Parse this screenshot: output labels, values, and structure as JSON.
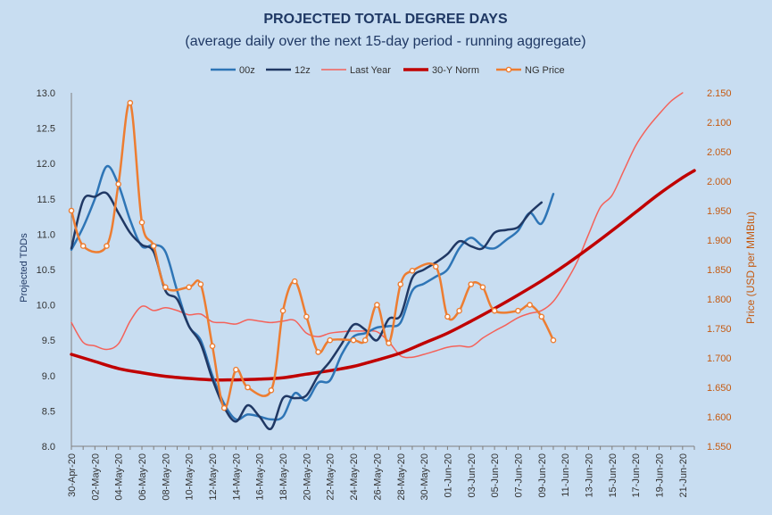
{
  "chart_data": {
    "type": "line",
    "title": "PROJECTED TOTAL DEGREE DAYS",
    "subtitle": "(average daily over the next 15-day period - running aggregate)",
    "ylabel": "Projected TDDs",
    "y2label": "Price (USD per MMBtu)",
    "ylim": [
      8.0,
      13.0
    ],
    "y2lim": [
      1.55,
      2.15
    ],
    "yticks": [
      "13.0",
      "12.5",
      "12.0",
      "11.5",
      "11.0",
      "10.5",
      "10.0",
      "9.5",
      "9.0",
      "8.5",
      "8.0"
    ],
    "y2ticks": [
      "2.150",
      "2.100",
      "2.050",
      "2.000",
      "1.950",
      "1.900",
      "1.850",
      "1.800",
      "1.750",
      "1.700",
      "1.650",
      "1.600",
      "1.550"
    ],
    "x_start": "2020-04-30",
    "x_end": "2020-06-22",
    "xticks": [
      "30-Apr-20",
      "02-May-20",
      "04-May-20",
      "06-May-20",
      "08-May-20",
      "10-May-20",
      "12-May-20",
      "14-May-20",
      "16-May-20",
      "18-May-20",
      "20-May-20",
      "22-May-20",
      "24-May-20",
      "26-May-20",
      "28-May-20",
      "30-May-20",
      "01-Jun-20",
      "03-Jun-20",
      "05-Jun-20",
      "07-Jun-20",
      "09-Jun-20",
      "11-Jun-20",
      "13-Jun-20",
      "15-Jun-20",
      "17-Jun-20",
      "19-Jun-20",
      "21-Jun-20"
    ],
    "grid": false,
    "legend": "top",
    "series": [
      {
        "name": "00z",
        "color": "#2e75b6",
        "axis": "left",
        "style": "line",
        "points": [
          [
            "30-Apr-20",
            10.78
          ],
          [
            "01-May-20",
            11.1
          ],
          [
            "02-May-20",
            11.5
          ],
          [
            "03-May-20",
            11.96
          ],
          [
            "04-May-20",
            11.7
          ],
          [
            "05-May-20",
            11.2
          ],
          [
            "06-May-20",
            10.83
          ],
          [
            "07-May-20",
            10.85
          ],
          [
            "08-May-20",
            10.75
          ],
          [
            "09-May-20",
            10.2
          ],
          [
            "10-May-20",
            9.7
          ],
          [
            "11-May-20",
            9.5
          ],
          [
            "12-May-20",
            9.0
          ],
          [
            "13-May-20",
            8.6
          ],
          [
            "14-May-20",
            8.38
          ],
          [
            "15-May-20",
            8.45
          ],
          [
            "16-May-20",
            8.42
          ],
          [
            "17-May-20",
            8.38
          ],
          [
            "18-May-20",
            8.42
          ],
          [
            "19-May-20",
            8.75
          ],
          [
            "20-May-20",
            8.65
          ],
          [
            "21-May-20",
            8.9
          ],
          [
            "22-May-20",
            8.93
          ],
          [
            "23-May-20",
            9.3
          ],
          [
            "24-May-20",
            9.55
          ],
          [
            "25-May-20",
            9.6
          ],
          [
            "26-May-20",
            9.68
          ],
          [
            "27-May-20",
            9.7
          ],
          [
            "28-May-20",
            9.75
          ],
          [
            "29-May-20",
            10.2
          ],
          [
            "30-May-20",
            10.3
          ],
          [
            "31-May-20",
            10.4
          ],
          [
            "01-Jun-20",
            10.5
          ],
          [
            "02-Jun-20",
            10.8
          ],
          [
            "03-Jun-20",
            10.95
          ],
          [
            "04-Jun-20",
            10.83
          ],
          [
            "05-Jun-20",
            10.8
          ],
          [
            "06-Jun-20",
            10.92
          ],
          [
            "07-Jun-20",
            11.05
          ],
          [
            "08-Jun-20",
            11.3
          ],
          [
            "09-Jun-20",
            11.15
          ],
          [
            "10-Jun-20",
            11.57
          ]
        ]
      },
      {
        "name": "12z",
        "color": "#203864",
        "axis": "left",
        "style": "line",
        "points": [
          [
            "30-Apr-20",
            10.8
          ],
          [
            "01-May-20",
            11.48
          ],
          [
            "02-May-20",
            11.53
          ],
          [
            "03-May-20",
            11.58
          ],
          [
            "04-May-20",
            11.3
          ],
          [
            "05-May-20",
            11.02
          ],
          [
            "06-May-20",
            10.85
          ],
          [
            "07-May-20",
            10.75
          ],
          [
            "08-May-20",
            10.2
          ],
          [
            "09-May-20",
            10.08
          ],
          [
            "10-May-20",
            9.7
          ],
          [
            "11-May-20",
            9.45
          ],
          [
            "12-May-20",
            8.95
          ],
          [
            "13-May-20",
            8.55
          ],
          [
            "14-May-20",
            8.35
          ],
          [
            "15-May-20",
            8.58
          ],
          [
            "16-May-20",
            8.42
          ],
          [
            "17-May-20",
            8.25
          ],
          [
            "18-May-20",
            8.68
          ],
          [
            "19-May-20",
            8.68
          ],
          [
            "20-May-20",
            8.72
          ],
          [
            "21-May-20",
            9.0
          ],
          [
            "22-May-20",
            9.2
          ],
          [
            "23-May-20",
            9.45
          ],
          [
            "24-May-20",
            9.72
          ],
          [
            "25-May-20",
            9.65
          ],
          [
            "26-May-20",
            9.5
          ],
          [
            "27-May-20",
            9.8
          ],
          [
            "28-May-20",
            9.85
          ],
          [
            "29-May-20",
            10.38
          ],
          [
            "30-May-20",
            10.5
          ],
          [
            "31-May-20",
            10.6
          ],
          [
            "01-Jun-20",
            10.72
          ],
          [
            "02-Jun-20",
            10.9
          ],
          [
            "03-Jun-20",
            10.83
          ],
          [
            "04-Jun-20",
            10.8
          ],
          [
            "05-Jun-20",
            11.02
          ],
          [
            "06-Jun-20",
            11.06
          ],
          [
            "07-Jun-20",
            11.1
          ],
          [
            "08-Jun-20",
            11.3
          ],
          [
            "09-Jun-20",
            11.45
          ]
        ]
      },
      {
        "name": "Last Year",
        "color": "#f4625a",
        "axis": "left",
        "style": "thin",
        "points": [
          [
            "30-Apr-20",
            9.75
          ],
          [
            "01-May-20",
            9.47
          ],
          [
            "02-May-20",
            9.42
          ],
          [
            "03-May-20",
            9.37
          ],
          [
            "04-May-20",
            9.45
          ],
          [
            "05-May-20",
            9.77
          ],
          [
            "06-May-20",
            9.98
          ],
          [
            "07-May-20",
            9.92
          ],
          [
            "08-May-20",
            9.96
          ],
          [
            "09-May-20",
            9.92
          ],
          [
            "10-May-20",
            9.86
          ],
          [
            "11-May-20",
            9.87
          ],
          [
            "12-May-20",
            9.76
          ],
          [
            "13-May-20",
            9.75
          ],
          [
            "14-May-20",
            9.73
          ],
          [
            "15-May-20",
            9.79
          ],
          [
            "16-May-20",
            9.77
          ],
          [
            "17-May-20",
            9.75
          ],
          [
            "18-May-20",
            9.77
          ],
          [
            "19-May-20",
            9.78
          ],
          [
            "20-May-20",
            9.6
          ],
          [
            "21-May-20",
            9.55
          ],
          [
            "22-May-20",
            9.6
          ],
          [
            "23-May-20",
            9.62
          ],
          [
            "24-May-20",
            9.63
          ],
          [
            "25-May-20",
            9.63
          ],
          [
            "26-May-20",
            9.62
          ],
          [
            "27-May-20",
            9.48
          ],
          [
            "28-May-20",
            9.28
          ],
          [
            "29-May-20",
            9.26
          ],
          [
            "30-May-20",
            9.3
          ],
          [
            "31-May-20",
            9.35
          ],
          [
            "01-Jun-20",
            9.4
          ],
          [
            "02-Jun-20",
            9.42
          ],
          [
            "03-Jun-20",
            9.41
          ],
          [
            "04-Jun-20",
            9.53
          ],
          [
            "05-Jun-20",
            9.63
          ],
          [
            "06-Jun-20",
            9.72
          ],
          [
            "07-Jun-20",
            9.82
          ],
          [
            "08-Jun-20",
            9.88
          ],
          [
            "09-Jun-20",
            9.92
          ],
          [
            "10-Jun-20",
            10.05
          ],
          [
            "11-Jun-20",
            10.3
          ],
          [
            "12-Jun-20",
            10.6
          ],
          [
            "13-Jun-20",
            11.0
          ],
          [
            "14-Jun-20",
            11.38
          ],
          [
            "15-Jun-20",
            11.55
          ],
          [
            "16-Jun-20",
            11.9
          ],
          [
            "17-Jun-20",
            12.25
          ],
          [
            "18-Jun-20",
            12.5
          ],
          [
            "19-Jun-20",
            12.7
          ],
          [
            "20-Jun-20",
            12.88
          ],
          [
            "21-Jun-20",
            13.0
          ]
        ]
      },
      {
        "name": "30-Y Norm",
        "color": "#c00000",
        "axis": "left",
        "style": "thick",
        "points": [
          [
            "30-Apr-20",
            9.3
          ],
          [
            "02-May-20",
            9.2
          ],
          [
            "04-May-20",
            9.1
          ],
          [
            "06-May-20",
            9.04
          ],
          [
            "08-May-20",
            8.99
          ],
          [
            "10-May-20",
            8.96
          ],
          [
            "12-May-20",
            8.94
          ],
          [
            "14-May-20",
            8.94
          ],
          [
            "16-May-20",
            8.95
          ],
          [
            "18-May-20",
            8.97
          ],
          [
            "20-May-20",
            9.02
          ],
          [
            "22-May-20",
            9.07
          ],
          [
            "24-May-20",
            9.13
          ],
          [
            "26-May-20",
            9.22
          ],
          [
            "28-May-20",
            9.32
          ],
          [
            "30-May-20",
            9.46
          ],
          [
            "01-Jun-20",
            9.6
          ],
          [
            "03-Jun-20",
            9.77
          ],
          [
            "05-Jun-20",
            9.95
          ],
          [
            "07-Jun-20",
            10.14
          ],
          [
            "09-Jun-20",
            10.34
          ],
          [
            "11-Jun-20",
            10.56
          ],
          [
            "13-Jun-20",
            10.8
          ],
          [
            "15-Jun-20",
            11.05
          ],
          [
            "17-Jun-20",
            11.31
          ],
          [
            "19-Jun-20",
            11.57
          ],
          [
            "21-Jun-20",
            11.8
          ],
          [
            "22-Jun-20",
            11.9
          ]
        ]
      },
      {
        "name": "NG Price",
        "color": "#ed7d31",
        "axis": "right",
        "style": "markers",
        "points": [
          [
            "30-Apr-20",
            1.95
          ],
          [
            "01-May-20",
            1.89
          ],
          [
            "03-May-20",
            1.89
          ],
          [
            "04-May-20",
            1.995
          ],
          [
            "05-May-20",
            2.133
          ],
          [
            "06-May-20",
            1.93
          ],
          [
            "07-May-20",
            1.89
          ],
          [
            "08-May-20",
            1.82
          ],
          [
            "10-May-20",
            1.82
          ],
          [
            "11-May-20",
            1.825
          ],
          [
            "12-May-20",
            1.72
          ],
          [
            "13-May-20",
            1.615
          ],
          [
            "14-May-20",
            1.68
          ],
          [
            "15-May-20",
            1.65
          ],
          [
            "17-May-20",
            1.645
          ],
          [
            "18-May-20",
            1.78
          ],
          [
            "19-May-20",
            1.83
          ],
          [
            "20-May-20",
            1.77
          ],
          [
            "21-May-20",
            1.71
          ],
          [
            "22-May-20",
            1.73
          ],
          [
            "24-May-20",
            1.73
          ],
          [
            "25-May-20",
            1.73
          ],
          [
            "26-May-20",
            1.79
          ],
          [
            "27-May-20",
            1.725
          ],
          [
            "28-May-20",
            1.825
          ],
          [
            "29-May-20",
            1.848
          ],
          [
            "31-May-20",
            1.855
          ],
          [
            "01-Jun-20",
            1.77
          ],
          [
            "02-Jun-20",
            1.78
          ],
          [
            "03-Jun-20",
            1.825
          ],
          [
            "04-Jun-20",
            1.82
          ],
          [
            "05-Jun-20",
            1.78
          ],
          [
            "07-Jun-20",
            1.78
          ],
          [
            "08-Jun-20",
            1.79
          ],
          [
            "09-Jun-20",
            1.77
          ],
          [
            "10-Jun-20",
            1.73
          ]
        ]
      }
    ]
  }
}
